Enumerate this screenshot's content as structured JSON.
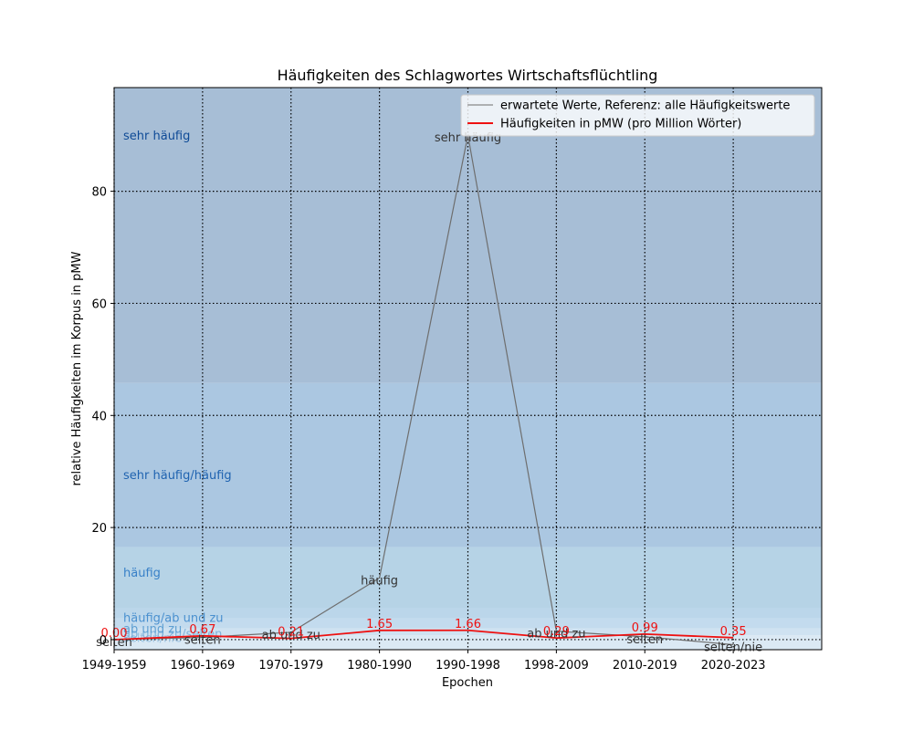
{
  "chart_data": {
    "type": "line",
    "title": "Häufigkeiten des Schlagwortes Wirtschaftsflüchtling",
    "xlabel": "Epochen",
    "ylabel": "relative Häufigkeiten im Korpus in pMW",
    "categories": [
      "1949-1959",
      "1960-1969",
      "1970-1979",
      "1980-1990",
      "1990-1998",
      "1998-2009",
      "2010-2019",
      "2020-2023"
    ],
    "xlim": [
      0,
      8
    ],
    "ylim": [
      -1.8,
      98.5
    ],
    "yticks": [
      0,
      20,
      40,
      60,
      80
    ],
    "grid": true,
    "legend_position": "top-right",
    "bands": [
      {
        "from": -1.8,
        "to": 0.8,
        "color": "#dbe9f4",
        "label": "selten/nie",
        "label_y": 0.4,
        "label_color": "#9cc3e2"
      },
      {
        "from": 0.8,
        "to": 2.0,
        "color": "#cfe2f1",
        "label": "ab und zu/selten",
        "label_y": 1.1,
        "label_color": "#7fb2da"
      },
      {
        "from": 2.0,
        "to": 3.8,
        "color": "#c3dbee",
        "label": "ab und zu",
        "label_y": 2.0,
        "label_color": "#5e9fd2"
      },
      {
        "from": 3.8,
        "to": 5.6,
        "color": "#bbd6ea",
        "label": "häufig/ab und zu",
        "label_y": 4.0,
        "label_color": "#4a90cf"
      },
      {
        "from": 5.6,
        "to": 16.5,
        "color": "#b6d3e6",
        "label": "häufig",
        "label_y": 12.0,
        "label_color": "#3880c8"
      },
      {
        "from": 16.5,
        "to": 45.8,
        "color": "#abc7e1",
        "label": "sehr häufig/häufig",
        "label_y": 29.5,
        "label_color": "#1f63b0"
      },
      {
        "from": 45.8,
        "to": 98.5,
        "color": "#a7bed6",
        "label": "sehr häufig",
        "label_y": 90.0,
        "label_color": "#0e4a96"
      }
    ],
    "series": [
      {
        "name": "erwartete Werte, Referenz: alle Häufigkeitswerte",
        "color": "#6e6e6e",
        "values": [
          0.0,
          0.4,
          1.3,
          11.0,
          90.0,
          1.5,
          0.5,
          -0.9
        ],
        "point_labels": [
          "selten",
          "selten",
          "ab und zu",
          "häufig",
          "sehr häufig",
          "ab und zu",
          "selten",
          "selten/nie"
        ]
      },
      {
        "name": "Häufigkeiten in pMW (pro Million Wörter)",
        "color": "#ee1111",
        "values": [
          0.0,
          0.67,
          0.21,
          1.65,
          1.66,
          0.29,
          0.99,
          0.35
        ],
        "point_labels": [
          "0.00",
          "0.67",
          "0.21",
          "1.65",
          "1.66",
          "0.29",
          "0.99",
          "0.35"
        ]
      }
    ]
  }
}
